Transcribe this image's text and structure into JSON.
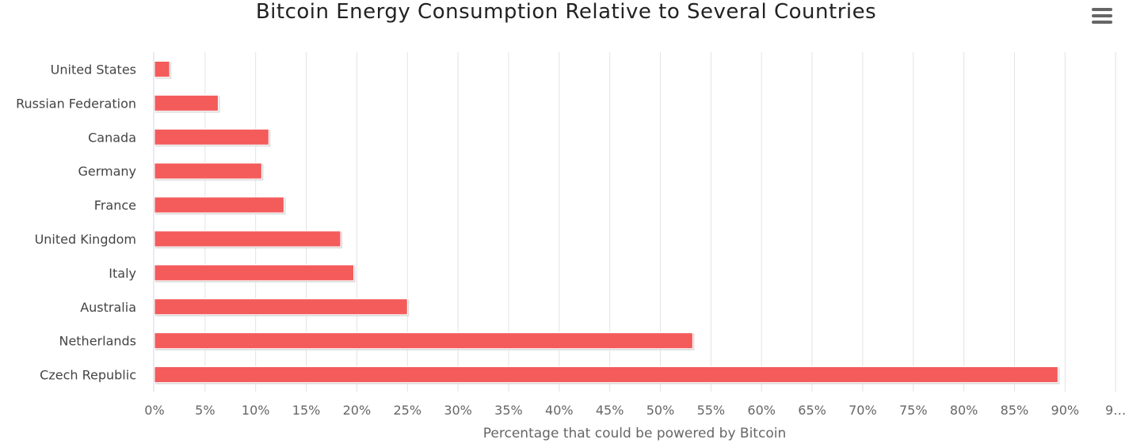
{
  "chart_data": {
    "type": "bar",
    "orientation": "horizontal",
    "title": "Bitcoin Energy Consumption Relative to Several Countries",
    "xlabel": "Percentage that could be powered by Bitcoin",
    "ylabel": "",
    "categories": [
      "United States",
      "Russian Federation",
      "Canada",
      "Germany",
      "France",
      "United Kingdom",
      "Italy",
      "Australia",
      "Netherlands",
      "Czech Republic"
    ],
    "values": [
      1.5,
      6.3,
      11.3,
      10.6,
      12.8,
      18.4,
      19.7,
      25.0,
      53.2,
      89.3
    ],
    "x_tick_labels": [
      "0%",
      "5%",
      "10%",
      "15%",
      "20%",
      "25%",
      "30%",
      "35%",
      "40%",
      "45%",
      "50%",
      "55%",
      "60%",
      "65%",
      "70%",
      "75%",
      "80%",
      "85%",
      "90%",
      "9…"
    ],
    "xlim": [
      0,
      95
    ],
    "grid": true,
    "bar_color": "#f45b5b"
  },
  "menu": {
    "icon": "hamburger-menu-icon"
  }
}
